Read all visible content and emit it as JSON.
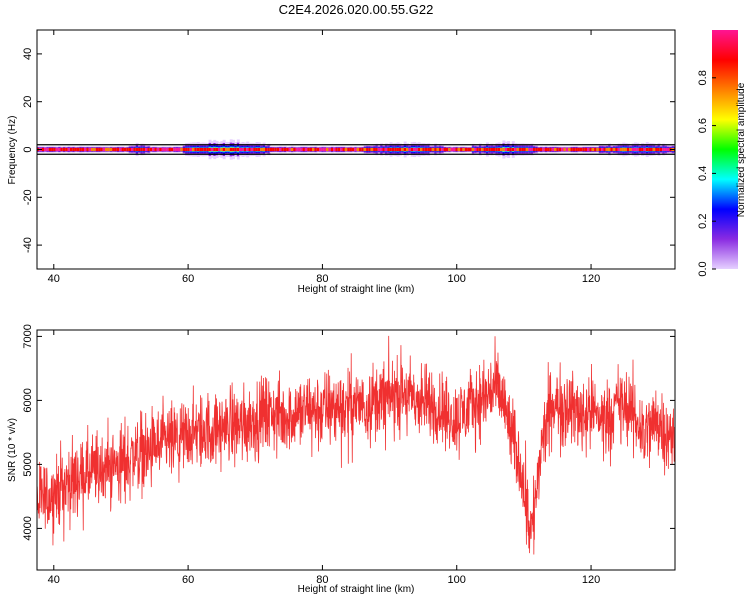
{
  "title": "C2E4.2026.020.00.55.G22",
  "chart_data": [
    {
      "type": "heatmap",
      "xlabel": "Height of straight line (km)",
      "ylabel": "Frequency (Hz)",
      "xlim": [
        37.5,
        132.5
      ],
      "ylim": [
        -50,
        50
      ],
      "xticks": [
        40,
        60,
        80,
        100,
        120
      ],
      "yticks": [
        -40,
        -20,
        0,
        20,
        40
      ],
      "grid": false,
      "colorbar": {
        "label": "Normalized spectral amplitude",
        "range": [
          0,
          1
        ],
        "ticks": [
          0.0,
          0.2,
          0.4,
          0.6,
          0.8
        ],
        "tick_labels": [
          "0.0",
          "0.2",
          "0.4",
          "0.6",
          "0.8"
        ],
        "colormap": [
          "#e6d0ff",
          "#8a2be2",
          "#0000ff",
          "#00ffff",
          "#00ff00",
          "#ffff00",
          "#ff7f00",
          "#ff0000",
          "#ff1493"
        ]
      },
      "ridge": {
        "center_frequency": 0,
        "reference_lines": [
          -2,
          2
        ],
        "spread_regions": [
          {
            "from": 51,
            "to": 54,
            "amplitude": 0.25
          },
          {
            "from": 59,
            "to": 72,
            "amplitude": 0.45
          },
          {
            "from": 86,
            "to": 98,
            "amplitude": 0.3
          },
          {
            "from": 102,
            "to": 112,
            "amplitude": 0.35
          },
          {
            "from": 121,
            "to": 132.5,
            "amplitude": 0.3
          }
        ]
      }
    },
    {
      "type": "line",
      "xlabel": "Height of straight line (km)",
      "ylabel": "SNR (10 * v/v)",
      "xlim": [
        37.5,
        132.5
      ],
      "ylim": [
        3350,
        7100
      ],
      "xticks": [
        40,
        60,
        80,
        100,
        120
      ],
      "yticks": [
        4000,
        5000,
        6000,
        7000
      ],
      "grid": false,
      "series": [
        {
          "color": "#f03030",
          "x": [
            37.5,
            40,
            42,
            44,
            46,
            48,
            50,
            52,
            54,
            56,
            58,
            60,
            62,
            64,
            66,
            68,
            70,
            72,
            74,
            76,
            78,
            80,
            82,
            84,
            86,
            88,
            90,
            92,
            94,
            96,
            98,
            100,
            102,
            104,
            105.5,
            106.5,
            107.5,
            108.5,
            109.5,
            110.5,
            111.2,
            112,
            113,
            114,
            116,
            118,
            120,
            122,
            124,
            126,
            128,
            130,
            132.5
          ],
          "y": [
            4400,
            4550,
            4700,
            4800,
            4850,
            4950,
            5000,
            5150,
            5200,
            5300,
            5350,
            5450,
            5500,
            5550,
            5600,
            5650,
            5700,
            5800,
            5750,
            5800,
            5850,
            5850,
            5900,
            5900,
            5950,
            6000,
            6050,
            6100,
            6000,
            5950,
            5800,
            5700,
            5900,
            6050,
            6200,
            6100,
            5700,
            5300,
            5000,
            4300,
            3950,
            4700,
            5500,
            5850,
            5950,
            5800,
            5850,
            5700,
            5950,
            5800,
            5500,
            5700,
            5300
          ],
          "noise_amplitude": 320
        }
      ]
    }
  ]
}
